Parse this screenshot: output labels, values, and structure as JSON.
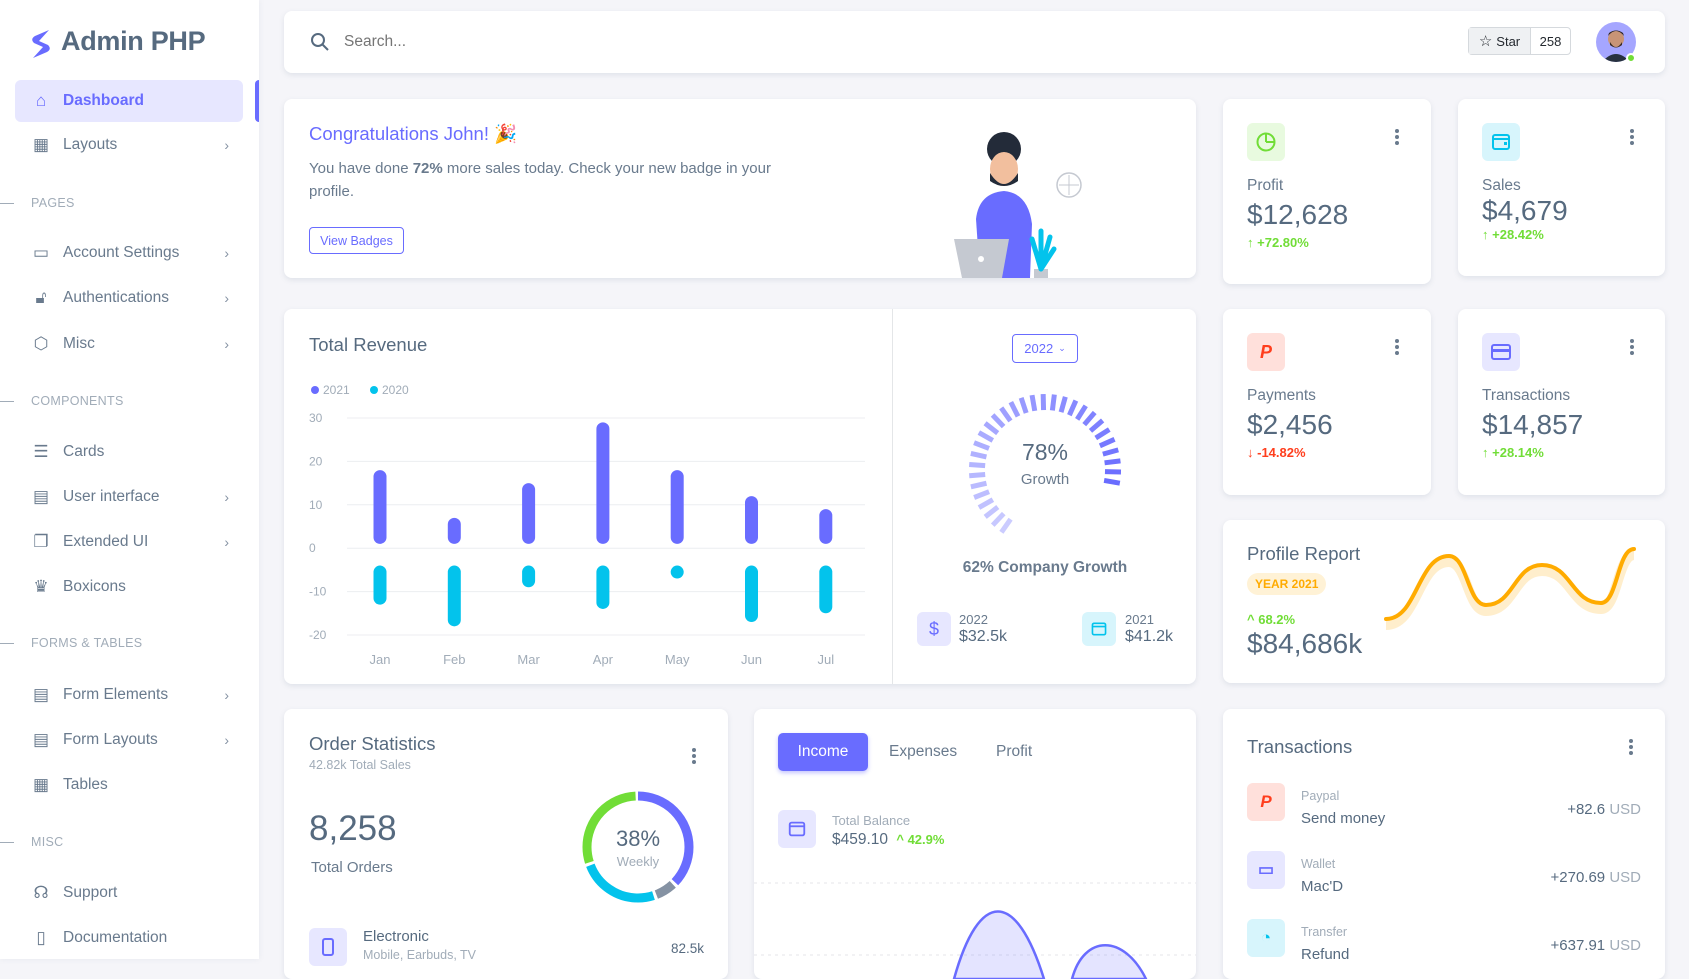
{
  "brand": {
    "name": "Admin PHP",
    "color": "#696cff"
  },
  "sidebar": {
    "items": [
      {
        "type": "item",
        "label": "Dashboard",
        "icon": "home-icon",
        "active": true
      },
      {
        "type": "item",
        "label": "Layouts",
        "icon": "layout-icon",
        "arrow": true
      },
      {
        "type": "section",
        "label": "PAGES"
      },
      {
        "type": "item",
        "label": "Account Settings",
        "icon": "window-icon",
        "arrow": true
      },
      {
        "type": "item",
        "label": "Authentications",
        "icon": "lock-icon",
        "arrow": true
      },
      {
        "type": "item",
        "label": "Misc",
        "icon": "cube-icon",
        "arrow": true
      },
      {
        "type": "section",
        "label": "COMPONENTS"
      },
      {
        "type": "item",
        "label": "Cards",
        "icon": "collection-icon"
      },
      {
        "type": "item",
        "label": "User interface",
        "icon": "box-icon",
        "arrow": true
      },
      {
        "type": "item",
        "label": "Extended UI",
        "icon": "copy-icon",
        "arrow": true
      },
      {
        "type": "item",
        "label": "Boxicons",
        "icon": "crown-icon"
      },
      {
        "type": "section",
        "label": "FORMS & TABLES"
      },
      {
        "type": "item",
        "label": "Form Elements",
        "icon": "detail-icon",
        "arrow": true
      },
      {
        "type": "item",
        "label": "Form Layouts",
        "icon": "detail-icon",
        "arrow": true
      },
      {
        "type": "item",
        "label": "Tables",
        "icon": "table-icon"
      },
      {
        "type": "section",
        "label": "MISC"
      },
      {
        "type": "item",
        "label": "Support",
        "icon": "support-icon"
      },
      {
        "type": "item",
        "label": "Documentation",
        "icon": "file-icon"
      }
    ]
  },
  "navbar": {
    "search_placeholder": "Search...",
    "star_label": "Star",
    "star_count": "258",
    "status_color": "#71dd37"
  },
  "welcome": {
    "title": "Congratulations John! 🎉",
    "text_before": "You have done ",
    "highlight": "72%",
    "text_after": " more sales today. Check your new badge in your profile.",
    "button": "View Badges"
  },
  "stats": {
    "profit": {
      "label": "Profit",
      "value": "$12,628",
      "change": "+72.80%",
      "trend": "up",
      "icon": "pie-chart-icon",
      "color": "#71dd37"
    },
    "sales": {
      "label": "Sales",
      "value": "$4,679",
      "change": "+28.42%",
      "trend": "up",
      "icon": "wallet-icon",
      "color": "#03c3ec"
    },
    "payments": {
      "label": "Payments",
      "value": "$2,456",
      "change": "-14.82%",
      "trend": "down",
      "icon": "paypal-icon",
      "color": "#ff3e1d"
    },
    "transactions": {
      "label": "Transactions",
      "value": "$14,857",
      "change": "+28.14%",
      "trend": "up",
      "icon": "credit-card-icon",
      "color": "#696cff"
    }
  },
  "revenue": {
    "title": "Total Revenue",
    "year_select": "2022",
    "growth_pct": 78,
    "growth_value": "78%",
    "growth_label": "Growth",
    "company_growth": "62% Company Growth",
    "summary": [
      {
        "year": "2022",
        "value": "$32.5k",
        "icon": "dollar-icon"
      },
      {
        "year": "2021",
        "value": "$41.2k",
        "icon": "wallet-icon"
      }
    ]
  },
  "chart_data": [
    {
      "type": "bar",
      "title": "Total Revenue",
      "categories": [
        "Jan",
        "Feb",
        "Mar",
        "Apr",
        "May",
        "Jun",
        "Jul"
      ],
      "series": [
        {
          "name": "2021",
          "color": "#696cff",
          "values": [
            18,
            7,
            15,
            29,
            18,
            12,
            9
          ]
        },
        {
          "name": "2020",
          "color": "#03c3ec",
          "values": [
            -13,
            -18,
            -9,
            -14,
            -5,
            -17,
            -15
          ]
        }
      ],
      "yticks": [
        "30",
        "20",
        "10",
        "0",
        "-10",
        "-20"
      ],
      "ylim": [
        -20,
        30
      ],
      "grid": true,
      "legend": "top-left"
    },
    {
      "type": "line",
      "title": "Profile Report",
      "color": "#ffab00",
      "values": [
        5,
        38,
        12,
        32,
        13,
        42
      ]
    },
    {
      "type": "pie",
      "title": "Order Statistics",
      "center_value": "38%",
      "center_label": "Weekly",
      "values": [
        38,
        25,
        30,
        7
      ],
      "colors": [
        "#696cff",
        "#03c3ec",
        "#71dd37",
        "#8592a3"
      ]
    },
    {
      "type": "area",
      "title": "Income",
      "color": "#696cff",
      "values": [
        0,
        0,
        45,
        0,
        28
      ]
    }
  ],
  "profile_report": {
    "title": "Profile Report",
    "badge": "YEAR 2021",
    "change": "68.2%",
    "value": "$84,686k"
  },
  "order_stats": {
    "title": "Order Statistics",
    "subtitle": "42.82k Total Sales",
    "total": "8,258",
    "total_label": "Total Orders",
    "items": [
      {
        "name": "Electronic",
        "desc": "Mobile, Earbuds, TV",
        "value": "82.5k",
        "icon": "mobile-icon"
      }
    ]
  },
  "income": {
    "tabs": [
      "Income",
      "Expenses",
      "Profit"
    ],
    "active_tab": "Income",
    "balance_label": "Total Balance",
    "balance": "$459.10",
    "balance_change": "42.9%"
  },
  "transactions": {
    "title": "Transactions",
    "rows": [
      {
        "source": "Paypal",
        "desc": "Send money",
        "amount": "+82.6",
        "currency": "USD",
        "icon": "paypal-icon",
        "color": "#ff3e1d",
        "bg": "#ffe0db"
      },
      {
        "source": "Wallet",
        "desc": "Mac'D",
        "amount": "+270.69",
        "currency": "USD",
        "icon": "wallet-icon",
        "color": "#696cff",
        "bg": "#e7e7ff"
      },
      {
        "source": "Transfer",
        "desc": "Refund",
        "amount": "+637.91",
        "currency": "USD",
        "icon": "pie-chart-icon",
        "color": "#03c3ec",
        "bg": "#d7f5fc"
      }
    ]
  }
}
